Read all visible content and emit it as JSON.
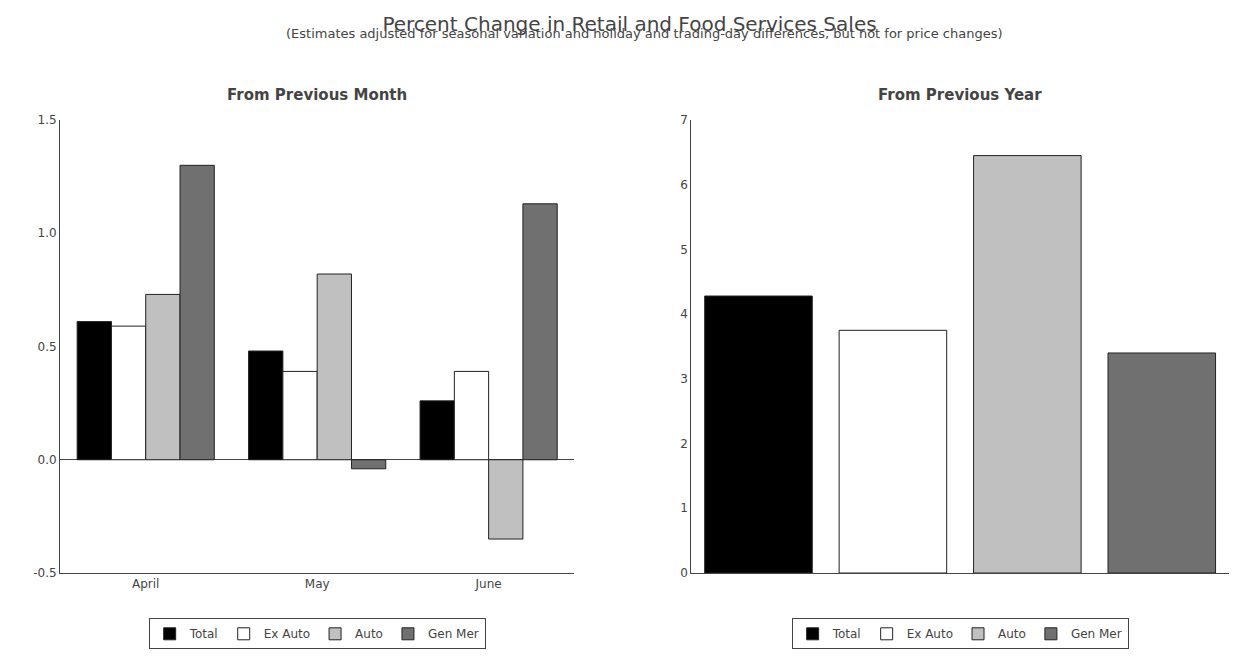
{
  "title": "Percent Change in Retail and Food Services Sales",
  "subtitle": "(Estimates adjusted for seasonal variation and holiday and trading-day differences, but not for price changes)",
  "chart_data": [
    {
      "type": "bar",
      "title": "From Previous Month",
      "categories": [
        "April",
        "May",
        "June"
      ],
      "series": [
        {
          "name": "Total",
          "color": "#000000",
          "values": [
            0.61,
            0.48,
            0.26
          ]
        },
        {
          "name": "Ex Auto",
          "color": "#ffffff",
          "values": [
            0.59,
            0.39,
            0.39
          ]
        },
        {
          "name": "Auto",
          "color": "#c0c0c0",
          "values": [
            0.73,
            0.82,
            -0.35
          ]
        },
        {
          "name": "Gen Mer",
          "color": "#707070",
          "values": [
            1.3,
            -0.04,
            1.13
          ]
        }
      ],
      "ylim": [
        -0.5,
        1.5
      ],
      "yticks": [
        -0.5,
        {
          "value": 0,
          "label": "0.0"
        },
        0.5,
        {
          "value": 1,
          "label": "1.0"
        },
        1.5
      ],
      "grid": false,
      "legend": "bottom"
    },
    {
      "type": "bar",
      "title": "From Previous Year",
      "categories": [
        "Total",
        "Ex Auto",
        "Auto",
        "Gen Mer"
      ],
      "values": [
        4.28,
        3.75,
        6.45,
        3.4
      ],
      "colors": [
        "#000000",
        "#ffffff",
        "#c0c0c0",
        "#707070"
      ],
      "ylim": [
        0,
        7
      ],
      "yticks": [
        0,
        1,
        2,
        3,
        4,
        5,
        6,
        7
      ],
      "tick_labels": "y",
      "grid": false,
      "legend": "bottom"
    }
  ]
}
